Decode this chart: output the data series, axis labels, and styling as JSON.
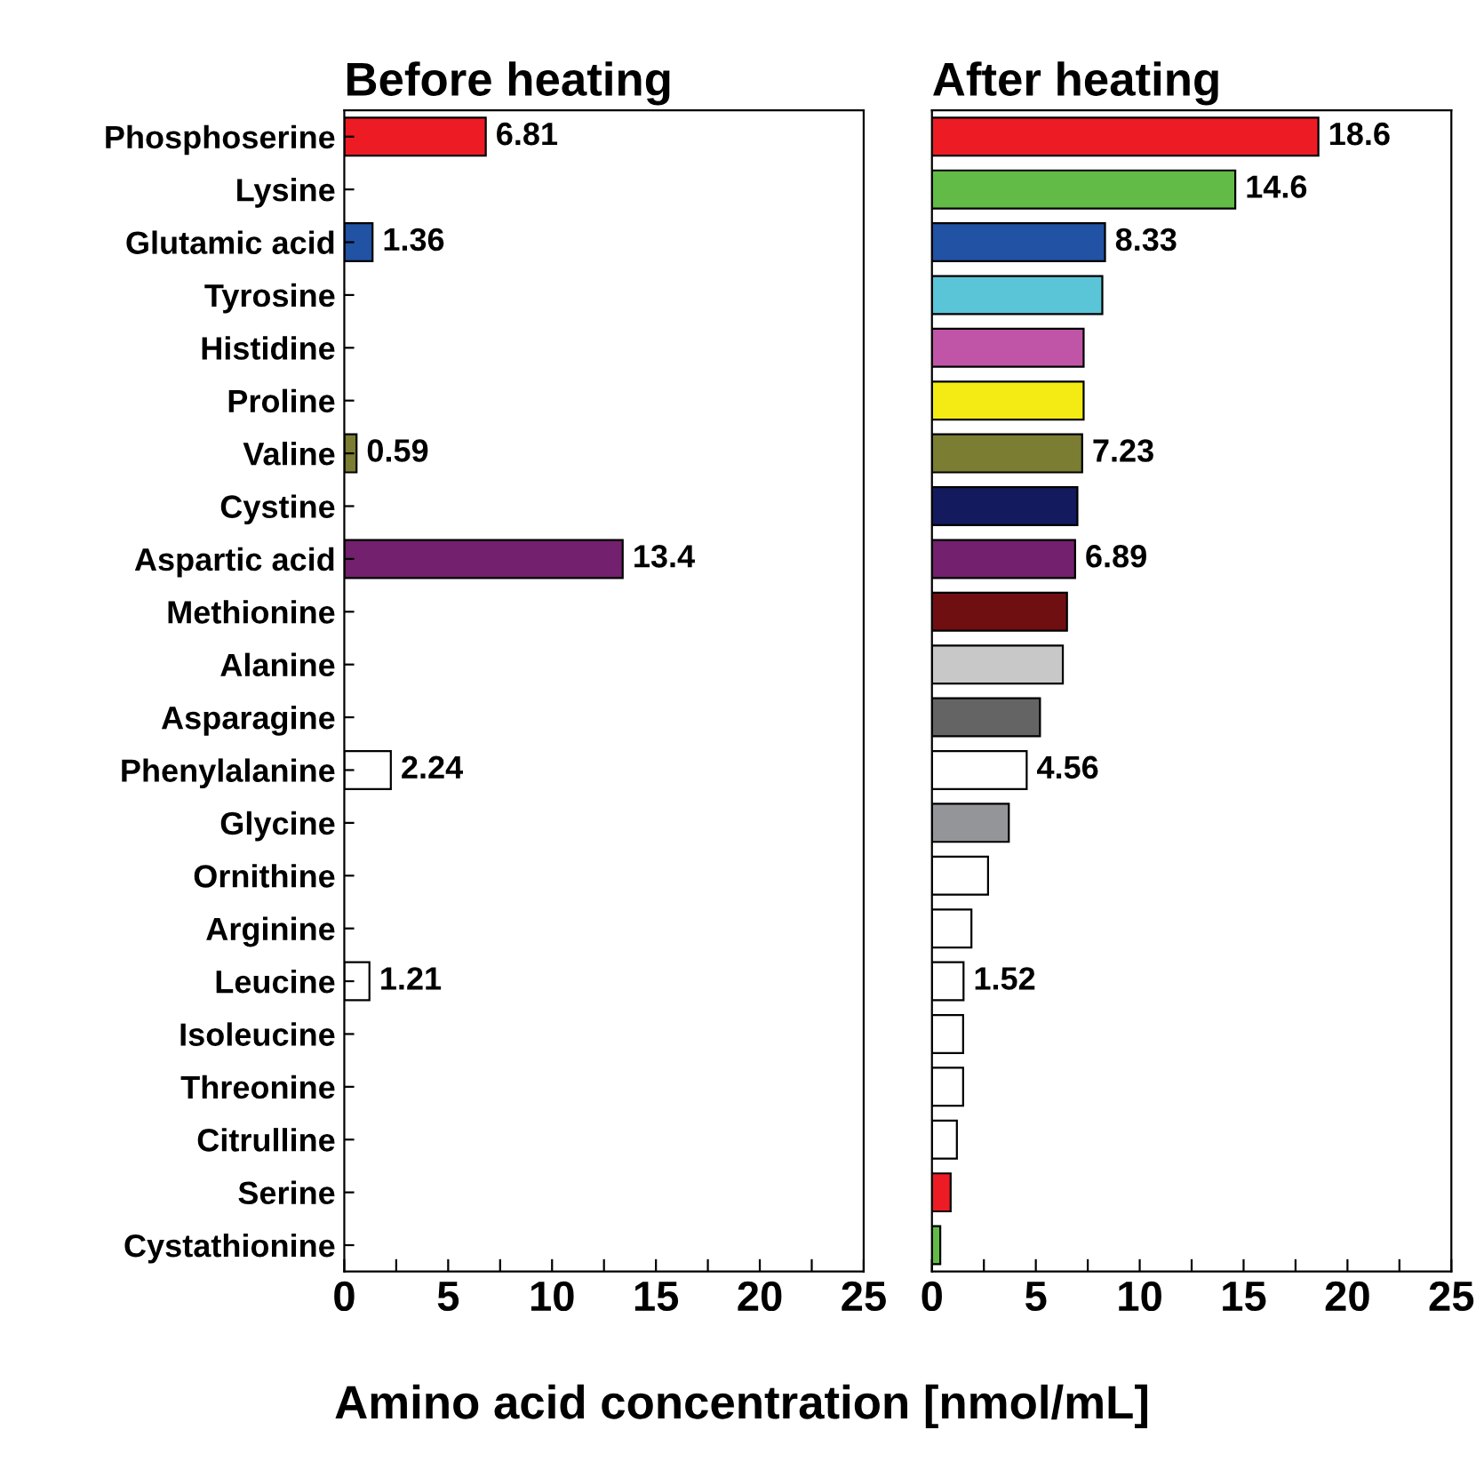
{
  "chart_data": [
    {
      "type": "bar",
      "orientation": "horizontal",
      "title": "Before heating",
      "xlabel": "Amino acid concentration [nmol/mL]",
      "categories": [
        "Phosphoserine",
        "Lysine",
        "Glutamic acid",
        "Tyrosine",
        "Histidine",
        "Proline",
        "Valine",
        "Cystine",
        "Aspartic acid",
        "Methionine",
        "Alanine",
        "Asparagine",
        "Phenylalanine",
        "Glycine",
        "Ornithine",
        "Arginine",
        "Leucine",
        "Isoleucine",
        "Threonine",
        "Citrulline",
        "Serine",
        "Cystathionine"
      ],
      "values": [
        6.81,
        null,
        1.36,
        null,
        null,
        null,
        0.59,
        null,
        13.4,
        null,
        null,
        null,
        2.24,
        null,
        null,
        null,
        1.21,
        null,
        null,
        null,
        null,
        null
      ],
      "colors": [
        "#ed1c24",
        "#62bb46",
        "#2152a3",
        "#5bc5d8",
        "#c055a8",
        "#f5eb14",
        "#7a7d32",
        "#141a5e",
        "#73206e",
        "#700f12",
        "#c8c8c8",
        "#646464",
        "#ffffff",
        "#939598",
        "#ffffff",
        "#ffffff",
        "#ffffff",
        "#ffffff",
        "#ffffff",
        "#ffffff",
        "#ed1c24",
        "#62bb46"
      ],
      "data_labels": true,
      "xlim": [
        0,
        25
      ],
      "xticks": [
        0,
        {
          "value": 2.5,
          "label": null
        },
        5,
        {
          "value": 7.5,
          "label": null
        },
        10,
        {
          "value": 12.5,
          "label": null
        },
        15,
        {
          "value": 17.5,
          "label": null
        },
        20,
        {
          "value": 22.5,
          "label": null
        },
        25
      ]
    },
    {
      "type": "bar",
      "orientation": "horizontal",
      "title": "After heating",
      "categories": [
        null,
        null,
        null,
        null,
        null,
        null,
        null,
        null,
        null,
        null,
        null,
        null,
        null,
        null,
        null,
        null,
        null,
        null,
        null,
        null,
        null,
        null
      ],
      "values": [
        18.6,
        14.6,
        8.33,
        8.2,
        7.3,
        7.3,
        7.23,
        7.0,
        6.89,
        6.5,
        6.3,
        5.2,
        4.56,
        3.7,
        2.7,
        1.9,
        1.52,
        1.5,
        1.5,
        1.2,
        0.9,
        0.4
      ],
      "value_labels": [
        "18.6",
        "14.6",
        "8.33",
        null,
        null,
        null,
        "7.23",
        null,
        "6.89",
        null,
        null,
        null,
        "4.56",
        null,
        null,
        null,
        "1.52",
        null,
        null,
        null,
        null,
        null
      ],
      "colors": [
        "#ed1c24",
        "#62bb46",
        "#2152a3",
        "#5bc5d8",
        "#c055a8",
        "#f5eb14",
        "#7a7d32",
        "#141a5e",
        "#73206e",
        "#700f12",
        "#c8c8c8",
        "#646464",
        "#ffffff",
        "#939598",
        "#ffffff",
        "#ffffff",
        "#ffffff",
        "#ffffff",
        "#ffffff",
        "#ffffff",
        "#ed1c24",
        "#62bb46"
      ],
      "tick_labels": "x",
      "xlim": [
        0,
        25
      ],
      "xticks": [
        0,
        {
          "value": 2.5,
          "label": null
        },
        5,
        {
          "value": 7.5,
          "label": null
        },
        10,
        {
          "value": 12.5,
          "label": null
        },
        15,
        {
          "value": 17.5,
          "label": null
        },
        20,
        {
          "value": 22.5,
          "label": null
        },
        25
      ]
    }
  ]
}
